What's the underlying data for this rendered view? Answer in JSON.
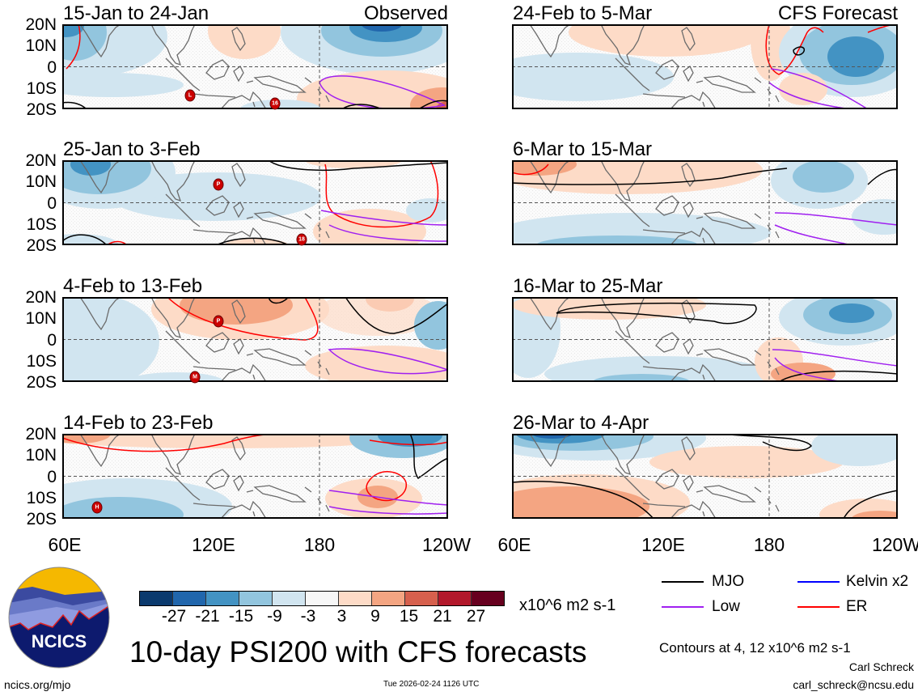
{
  "panels": [
    {
      "title": "15-Jan to 24-Jan",
      "label": "Observed",
      "storms": [
        "L",
        "16"
      ]
    },
    {
      "title": "25-Jan to 3-Feb",
      "label": "",
      "storms": [
        "P",
        "18"
      ]
    },
    {
      "title": "4-Feb to 13-Feb",
      "label": "",
      "storms": [
        "P",
        "M"
      ]
    },
    {
      "title": "14-Feb to 23-Feb",
      "label": "",
      "storms": [
        "H"
      ]
    },
    {
      "title": "24-Feb to 5-Mar",
      "label": "CFS Forecast",
      "storms": []
    },
    {
      "title": "6-Mar to 15-Mar",
      "label": "",
      "storms": []
    },
    {
      "title": "16-Mar to 25-Mar",
      "label": "",
      "storms": []
    },
    {
      "title": "26-Mar to 4-Apr",
      "label": "",
      "storms": []
    }
  ],
  "lat_labels": [
    "20N",
    "10N",
    "0",
    "10S",
    "20S"
  ],
  "lon_labels": [
    "60E",
    "120E",
    "180",
    "120W"
  ],
  "colorbar": {
    "ticks": [
      "-27",
      "-21",
      "-15",
      "-9",
      "-3",
      "3",
      "9",
      "15",
      "21",
      "27"
    ],
    "units": "x10^6 m2 s-1",
    "colors": [
      "#0b3a6e",
      "#2166ac",
      "#4393c3",
      "#92c5de",
      "#d1e5f0",
      "#f7f7f7",
      "#fddbc7",
      "#f4a582",
      "#d6604d",
      "#b2182b",
      "#67001f"
    ]
  },
  "legend": [
    {
      "label": "MJO",
      "color": "#000000"
    },
    {
      "label": "Kelvin x2",
      "color": "#0000ff"
    },
    {
      "label": "Low",
      "color": "#a020f0"
    },
    {
      "label": "ER",
      "color": "#ff0000"
    }
  ],
  "contour_note": "Contours at 4, 12 x10^6 m2 s-1",
  "title": "10-day PSI200 with CFS forecasts",
  "timestamp": "Tue 2026-02-24 1126 UTC",
  "author": "Carl Schreck",
  "email": "carl_schreck@ncsu.edu",
  "url": "ncics.org/mjo",
  "logo_text": "NCICS"
}
